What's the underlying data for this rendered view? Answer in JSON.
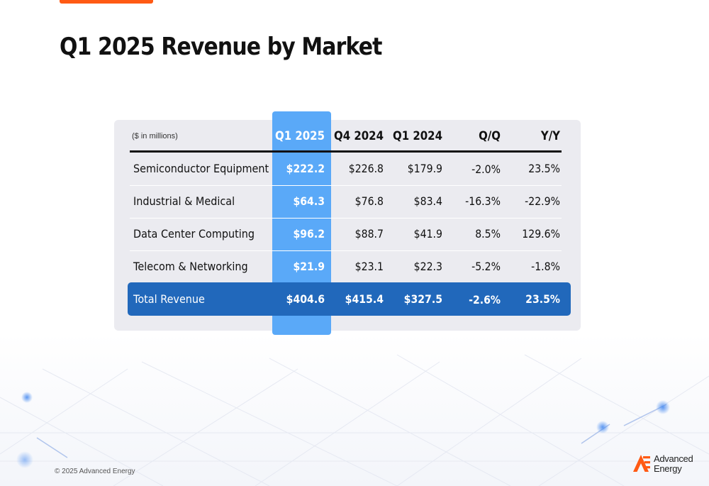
{
  "slide": {
    "title": "Q1 2025 Revenue by Market",
    "footer": "© 2025 Advanced Energy",
    "brand": {
      "line1": "Advanced",
      "line2": "Energy"
    }
  },
  "table": {
    "units_note": "($ in millions)",
    "headers": [
      "Q1 2025",
      "Q4 2024",
      "Q1 2024",
      "Q/Q",
      "Y/Y"
    ],
    "rows": [
      {
        "label": "Semiconductor Equipment",
        "values": [
          "$222.2",
          "$226.8",
          "$179.9",
          "-2.0%",
          "23.5%"
        ]
      },
      {
        "label": "Industrial & Medical",
        "values": [
          "$64.3",
          "$76.8",
          "$83.4",
          "-16.3%",
          "-22.9%"
        ]
      },
      {
        "label": "Data Center Computing",
        "values": [
          "$96.2",
          "$88.7",
          "$41.9",
          "8.5%",
          "129.6%"
        ]
      },
      {
        "label": "Telecom & Networking",
        "values": [
          "$21.9",
          "$23.1",
          "$22.3",
          "-5.2%",
          "-1.8%"
        ]
      }
    ],
    "total": {
      "label": "Total Revenue",
      "values": [
        "$404.6",
        "$415.4",
        "$327.5",
        "-2.6%",
        "23.5%"
      ]
    }
  },
  "colors": {
    "accent_orange": "#ff5a14",
    "highlight_column": "#5aa9f8",
    "total_row": "#2168bb",
    "panel": "#ebebf0"
  }
}
